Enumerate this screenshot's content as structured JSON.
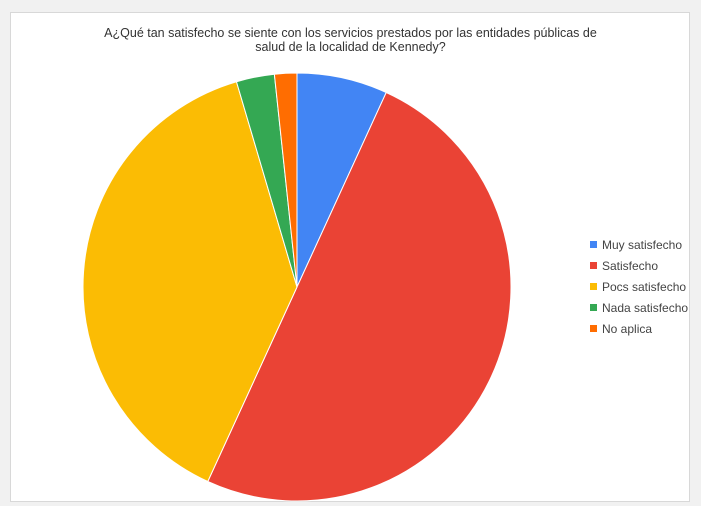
{
  "chart_data": {
    "type": "pie",
    "title_lines": [
      "A¿Qué tan satisfecho se siente con los servicios prestados por las entidades públicas de",
      "salud de la localidad de Kennedy?"
    ],
    "categories": [
      "Muy satisfecho",
      "Satisfecho",
      "Pocs satisfecho",
      "Nada satisfecho",
      "No aplica"
    ],
    "values": [
      6.9,
      50.4,
      38.9,
      2.9,
      1.7
    ],
    "colors": [
      "#4285f4",
      "#ea4335",
      "#fbbc04",
      "#34a853",
      "#ff6d01"
    ],
    "legend_position": "right"
  }
}
